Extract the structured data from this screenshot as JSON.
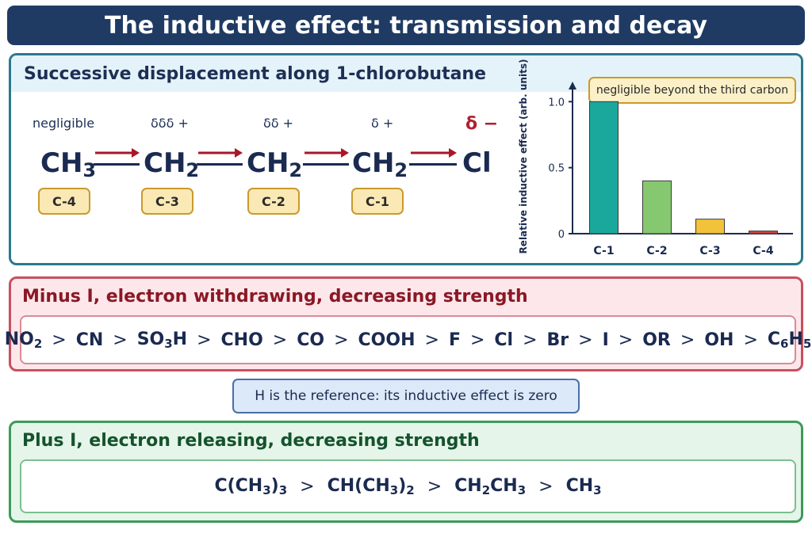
{
  "title": "The inductive effect: transmission and decay",
  "chain_panel": {
    "heading": "Successive displacement along 1-chlorobutane",
    "note": "negligible beyond the third carbon",
    "charges": [
      "negligible",
      "δδδ +",
      "δδ +",
      "δ +",
      "δ −"
    ],
    "atoms": [
      {
        "main": "CH",
        "sub": "3"
      },
      {
        "main": "CH",
        "sub": "2"
      },
      {
        "main": "CH",
        "sub": "2"
      },
      {
        "main": "CH",
        "sub": "2"
      },
      {
        "main": "Cl",
        "sub": ""
      }
    ],
    "carbon_labels": [
      "C-4",
      "C-3",
      "C-2",
      "C-1"
    ]
  },
  "chart_data": {
    "type": "bar",
    "categories": [
      "C-1",
      "C-2",
      "C-3",
      "C-4"
    ],
    "values": [
      1.0,
      0.4,
      0.11,
      0.02
    ],
    "colors": [
      "#1aa89c",
      "#86c870",
      "#f2c23a",
      "#d84040"
    ],
    "ylabel": "Relative inductive effect (arb. units)",
    "yticks": [
      "0",
      "0.5",
      "1.0"
    ],
    "ylim": [
      0,
      1.05
    ]
  },
  "minus_panel": {
    "heading": "Minus I, electron withdrawing, decreasing strength",
    "items": [
      {
        "main": "NO",
        "sub": "2",
        "tail": ""
      },
      {
        "main": "CN",
        "sub": "",
        "tail": ""
      },
      {
        "main": "SO",
        "sub": "3",
        "tail": "H"
      },
      {
        "main": "CHO",
        "sub": "",
        "tail": ""
      },
      {
        "main": "CO",
        "sub": "",
        "tail": ""
      },
      {
        "main": "COOH",
        "sub": "",
        "tail": ""
      },
      {
        "main": "F",
        "sub": "",
        "tail": ""
      },
      {
        "main": "Cl",
        "sub": "",
        "tail": ""
      },
      {
        "main": "Br",
        "sub": "",
        "tail": ""
      },
      {
        "main": "I",
        "sub": "",
        "tail": ""
      },
      {
        "main": "OR",
        "sub": "",
        "tail": ""
      },
      {
        "main": "OH",
        "sub": "",
        "tail": ""
      },
      {
        "main": "C",
        "sub": "6",
        "tail": "H",
        "sub2": "5"
      }
    ],
    "separator": ">"
  },
  "reference_note": "H is the reference: its inductive effect is zero",
  "plus_panel": {
    "heading": "Plus I, electron releasing, decreasing strength",
    "items": [
      {
        "main": "C(CH",
        "sub": "3",
        "tail": ")",
        "sub2": "3"
      },
      {
        "main": "CH(CH",
        "sub": "3",
        "tail": ")",
        "sub2": "2"
      },
      {
        "main": "CH",
        "sub": "2",
        "tail": "CH",
        "sub2": "3"
      },
      {
        "main": "CH",
        "sub": "3",
        "tail": ""
      }
    ],
    "separator": ">"
  },
  "colors": {
    "title_bg": "#1f3b63",
    "arrow": "#a8182a",
    "minus_border": "#c85060",
    "plus_border": "#3d9a5a"
  }
}
